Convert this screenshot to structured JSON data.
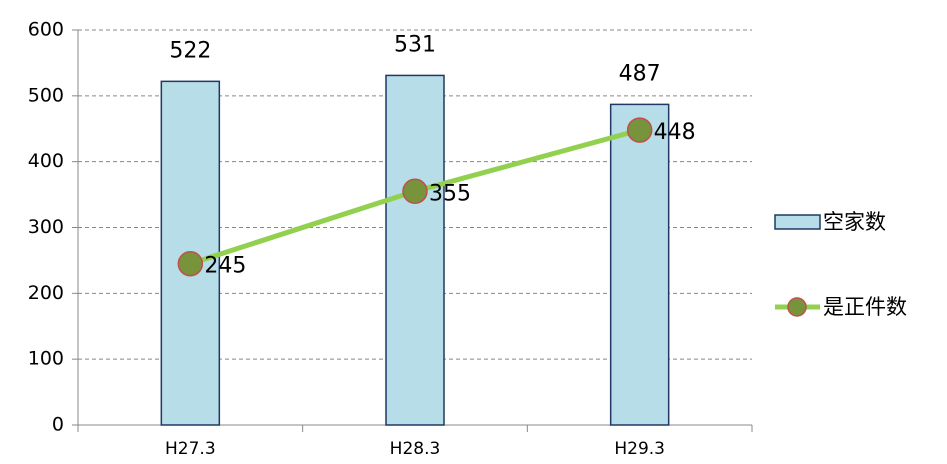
{
  "chart_data": {
    "type": "bar",
    "categories": [
      "H27.3",
      "H28.3",
      "H29.3"
    ],
    "series": [
      {
        "name": "空家数",
        "type": "bar",
        "color": "#b7dde8",
        "values": [
          522,
          531,
          487
        ]
      },
      {
        "name": "是正件数",
        "type": "line",
        "color": "#92d050",
        "values": [
          245,
          355,
          448
        ]
      }
    ],
    "ylim": [
      0,
      600
    ],
    "yticks": [
      0,
      100,
      200,
      300,
      400,
      500,
      600
    ],
    "grid": true
  }
}
